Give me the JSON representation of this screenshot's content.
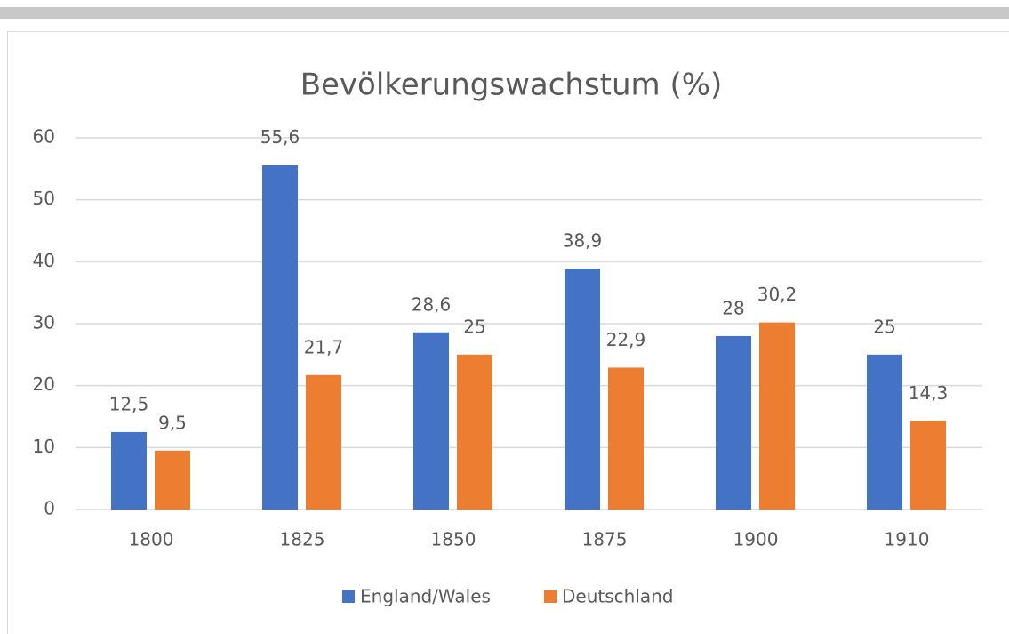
{
  "chart_data": {
    "type": "bar",
    "title": "Bevölkerungswachstum (%)",
    "categories": [
      "1800",
      "1825",
      "1850",
      "1875",
      "1900",
      "1910"
    ],
    "series": [
      {
        "name": "England/Wales",
        "color": "#4472c4",
        "values": [
          12.5,
          55.6,
          28.6,
          38.9,
          28,
          25
        ],
        "value_labels": [
          "12,5",
          "55,6",
          "28,6",
          "38,9",
          "28",
          "25"
        ]
      },
      {
        "name": "Deutschland",
        "color": "#ed7d31",
        "values": [
          9.5,
          21.7,
          25,
          22.9,
          30.2,
          14.3
        ],
        "value_labels": [
          "9,5",
          "21,7",
          "25",
          "22,9",
          "30,2",
          "14,3"
        ]
      }
    ],
    "ylim": [
      0,
      60
    ],
    "yticks": [
      0,
      10,
      20,
      30,
      40,
      50,
      60
    ],
    "grid": true,
    "legend": "bottom"
  }
}
